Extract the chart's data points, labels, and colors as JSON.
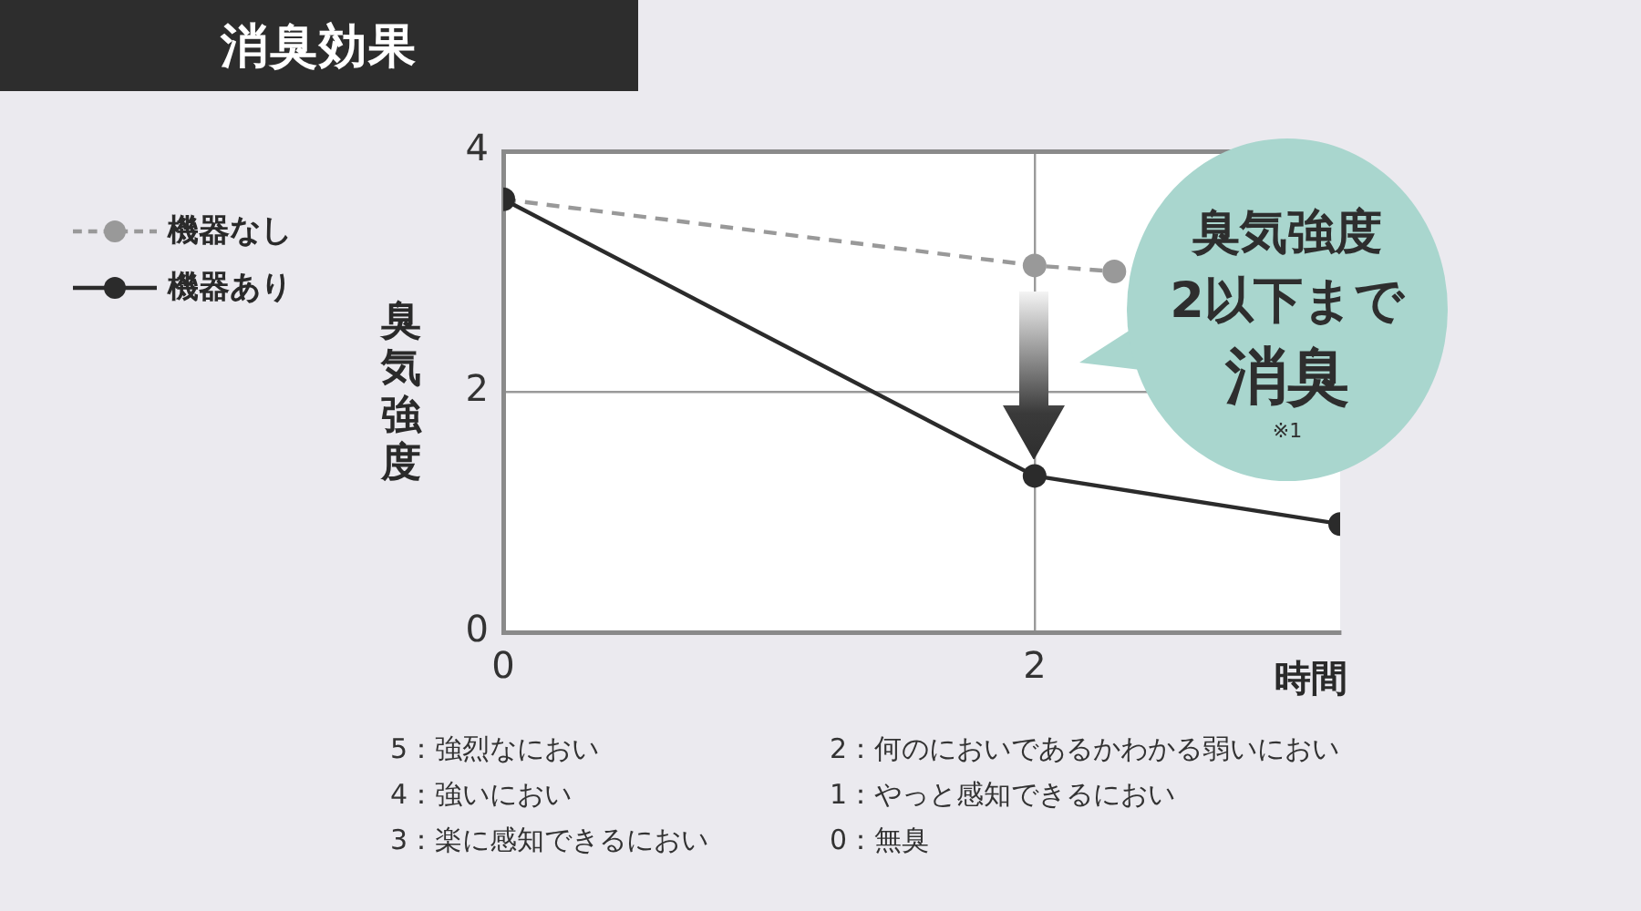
{
  "chart_data": {
    "type": "line",
    "title": "消臭効果",
    "xlabel": "時間",
    "ylabel": "臭気強度",
    "series": [
      {
        "name": "機器なし",
        "color": "#999999",
        "line_style": "dashed",
        "x": [
          0,
          2,
          2.3
        ],
        "values": [
          3.6,
          3.05,
          3.0
        ]
      },
      {
        "name": "機器あり",
        "color": "#2b2b2b",
        "line_style": "solid",
        "x": [
          0,
          2,
          3.15
        ],
        "values": [
          3.6,
          1.3,
          0.9
        ]
      }
    ],
    "xlim": [
      0,
      3.15
    ],
    "xticks": [
      0,
      2
    ],
    "ylim": [
      0,
      4
    ],
    "yticks": [
      0,
      2,
      4
    ],
    "grid": true,
    "legend": "top left",
    "marker": "circle",
    "annotations": [
      "臭気強度",
      "2以下まで",
      "消臭",
      "※1",
      "5：強烈なにおい",
      "4：強いにおい",
      "3：楽に感知できるにおい",
      "2：何のにおいであるかわかる弱いにおい",
      "1：やっと感知できるにおい",
      "0：無臭"
    ]
  }
}
